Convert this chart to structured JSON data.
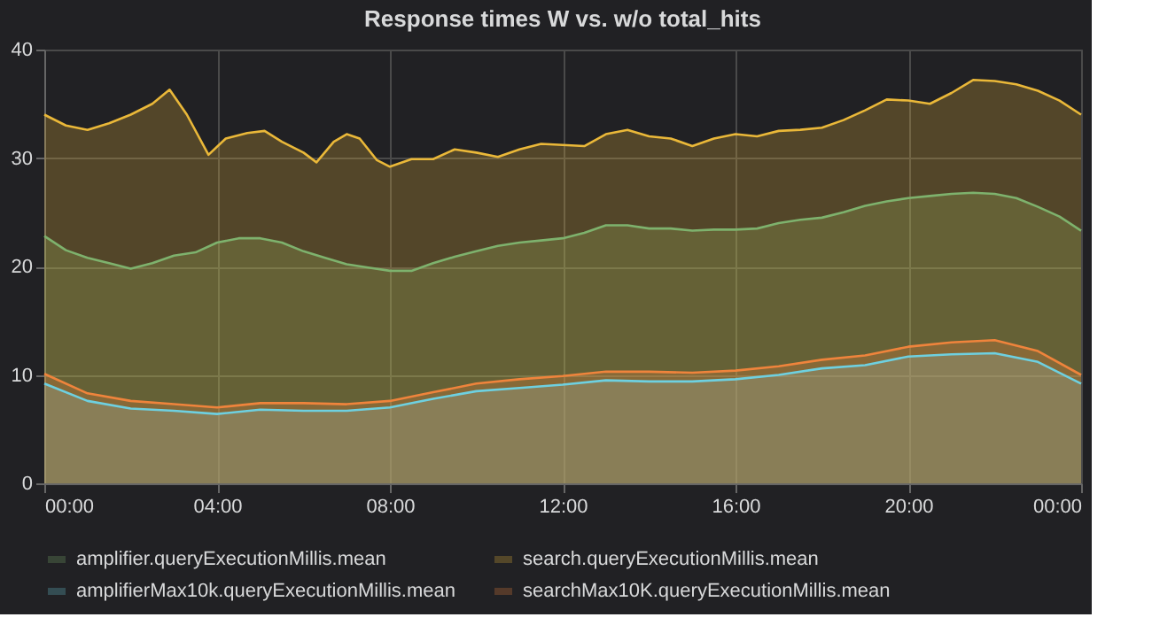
{
  "chart_data": {
    "type": "area",
    "title": "Response times W vs. w/o total_hits",
    "xlim": [
      0,
      24
    ],
    "xticks": [
      {
        "value": 0,
        "label": "00:00"
      },
      {
        "value": 4,
        "label": "04:00"
      },
      {
        "value": 8,
        "label": "08:00"
      },
      {
        "value": 12,
        "label": "12:00"
      },
      {
        "value": 16,
        "label": "16:00"
      },
      {
        "value": 20,
        "label": "20:00"
      },
      {
        "value": 24,
        "label": "00:00"
      }
    ],
    "ylim": [
      0,
      40
    ],
    "yticks": [
      0,
      10,
      20,
      30,
      40
    ],
    "grid": true,
    "legend": "bottom",
    "series": [
      {
        "name": "amplifier.queryExecutionMillis.mean",
        "color": "#7eb26d",
        "x": [
          0,
          0.5,
          1,
          1.5,
          2,
          2.5,
          3,
          3.5,
          4,
          4.5,
          5,
          5.5,
          6,
          6.5,
          7,
          7.5,
          8,
          8.5,
          9,
          9.5,
          10,
          10.5,
          11,
          11.5,
          12,
          12.5,
          13,
          13.5,
          14,
          14.5,
          15,
          15.5,
          16,
          16.5,
          17,
          17.5,
          18,
          18.5,
          19,
          19.5,
          20,
          20.5,
          21,
          21.5,
          22,
          22.5,
          23,
          23.5,
          24
        ],
        "values": [
          22.8,
          21.5,
          20.8,
          20.3,
          19.8,
          20.3,
          21,
          21.3,
          22.2,
          22.6,
          22.6,
          22.2,
          21.4,
          20.8,
          20.2,
          19.9,
          19.6,
          19.6,
          20.3,
          20.9,
          21.4,
          21.9,
          22.2,
          22.4,
          22.6,
          23.1,
          23.8,
          23.8,
          23.5,
          23.5,
          23.3,
          23.4,
          23.4,
          23.5,
          24,
          24.3,
          24.5,
          25,
          25.6,
          26,
          26.3,
          26.5,
          26.7,
          26.8,
          26.7,
          26.3,
          25.5,
          24.6,
          23.3
        ]
      },
      {
        "name": "search.queryExecutionMillis.mean",
        "color": "#eab839",
        "x": [
          0,
          0.5,
          1,
          1.5,
          2,
          2.5,
          2.9,
          3.3,
          3.8,
          4.2,
          4.7,
          5.1,
          5.5,
          6,
          6.3,
          6.7,
          7,
          7.3,
          7.7,
          8,
          8.5,
          9,
          9.5,
          10,
          10.5,
          11,
          11.5,
          12,
          12.5,
          13,
          13.5,
          14,
          14.5,
          15,
          15.5,
          16,
          16.5,
          17,
          17.5,
          18,
          18.5,
          19,
          19.5,
          20,
          20.5,
          21,
          21.5,
          22,
          22.5,
          23,
          23.5,
          24
        ],
        "values": [
          34,
          33,
          32.6,
          33.2,
          34,
          35,
          36.3,
          34,
          30.3,
          31.8,
          32.3,
          32.5,
          31.5,
          30.5,
          29.6,
          31.5,
          32.2,
          31.8,
          29.8,
          29.2,
          29.9,
          29.9,
          30.8,
          30.5,
          30.1,
          30.8,
          31.3,
          31.2,
          31.1,
          32.2,
          32.6,
          32,
          31.8,
          31.1,
          31.8,
          32.2,
          32,
          32.5,
          32.6,
          32.8,
          33.5,
          34.4,
          35.4,
          35.3,
          35,
          36,
          37.2,
          37.1,
          36.8,
          36.2,
          35.3,
          34
        ]
      },
      {
        "name": "amplifierMax10k.queryExecutionMillis.mean",
        "color": "#6ed0e0",
        "x": [
          0,
          1,
          2,
          3,
          4,
          5,
          6,
          7,
          8,
          9,
          10,
          11,
          12,
          13,
          14,
          15,
          16,
          17,
          18,
          19,
          20,
          21,
          22,
          23,
          24
        ],
        "values": [
          9.2,
          7.6,
          6.9,
          6.7,
          6.4,
          6.8,
          6.7,
          6.7,
          7,
          7.8,
          8.5,
          8.8,
          9.1,
          9.5,
          9.4,
          9.4,
          9.6,
          10,
          10.6,
          10.9,
          11.7,
          11.9,
          12,
          11.2,
          9.2
        ]
      },
      {
        "name": "searchMax10K.queryExecutionMillis.mean",
        "color": "#ef843c",
        "x": [
          0,
          1,
          2,
          3,
          4,
          5,
          6,
          7,
          8,
          9,
          10,
          11,
          12,
          13,
          14,
          15,
          16,
          17,
          18,
          19,
          20,
          21,
          22,
          23,
          24
        ],
        "values": [
          10.1,
          8.3,
          7.6,
          7.3,
          7,
          7.4,
          7.4,
          7.3,
          7.6,
          8.4,
          9.2,
          9.6,
          9.9,
          10.3,
          10.3,
          10.2,
          10.4,
          10.8,
          11.4,
          11.8,
          12.6,
          13,
          13.2,
          12.2,
          10
        ]
      }
    ]
  }
}
